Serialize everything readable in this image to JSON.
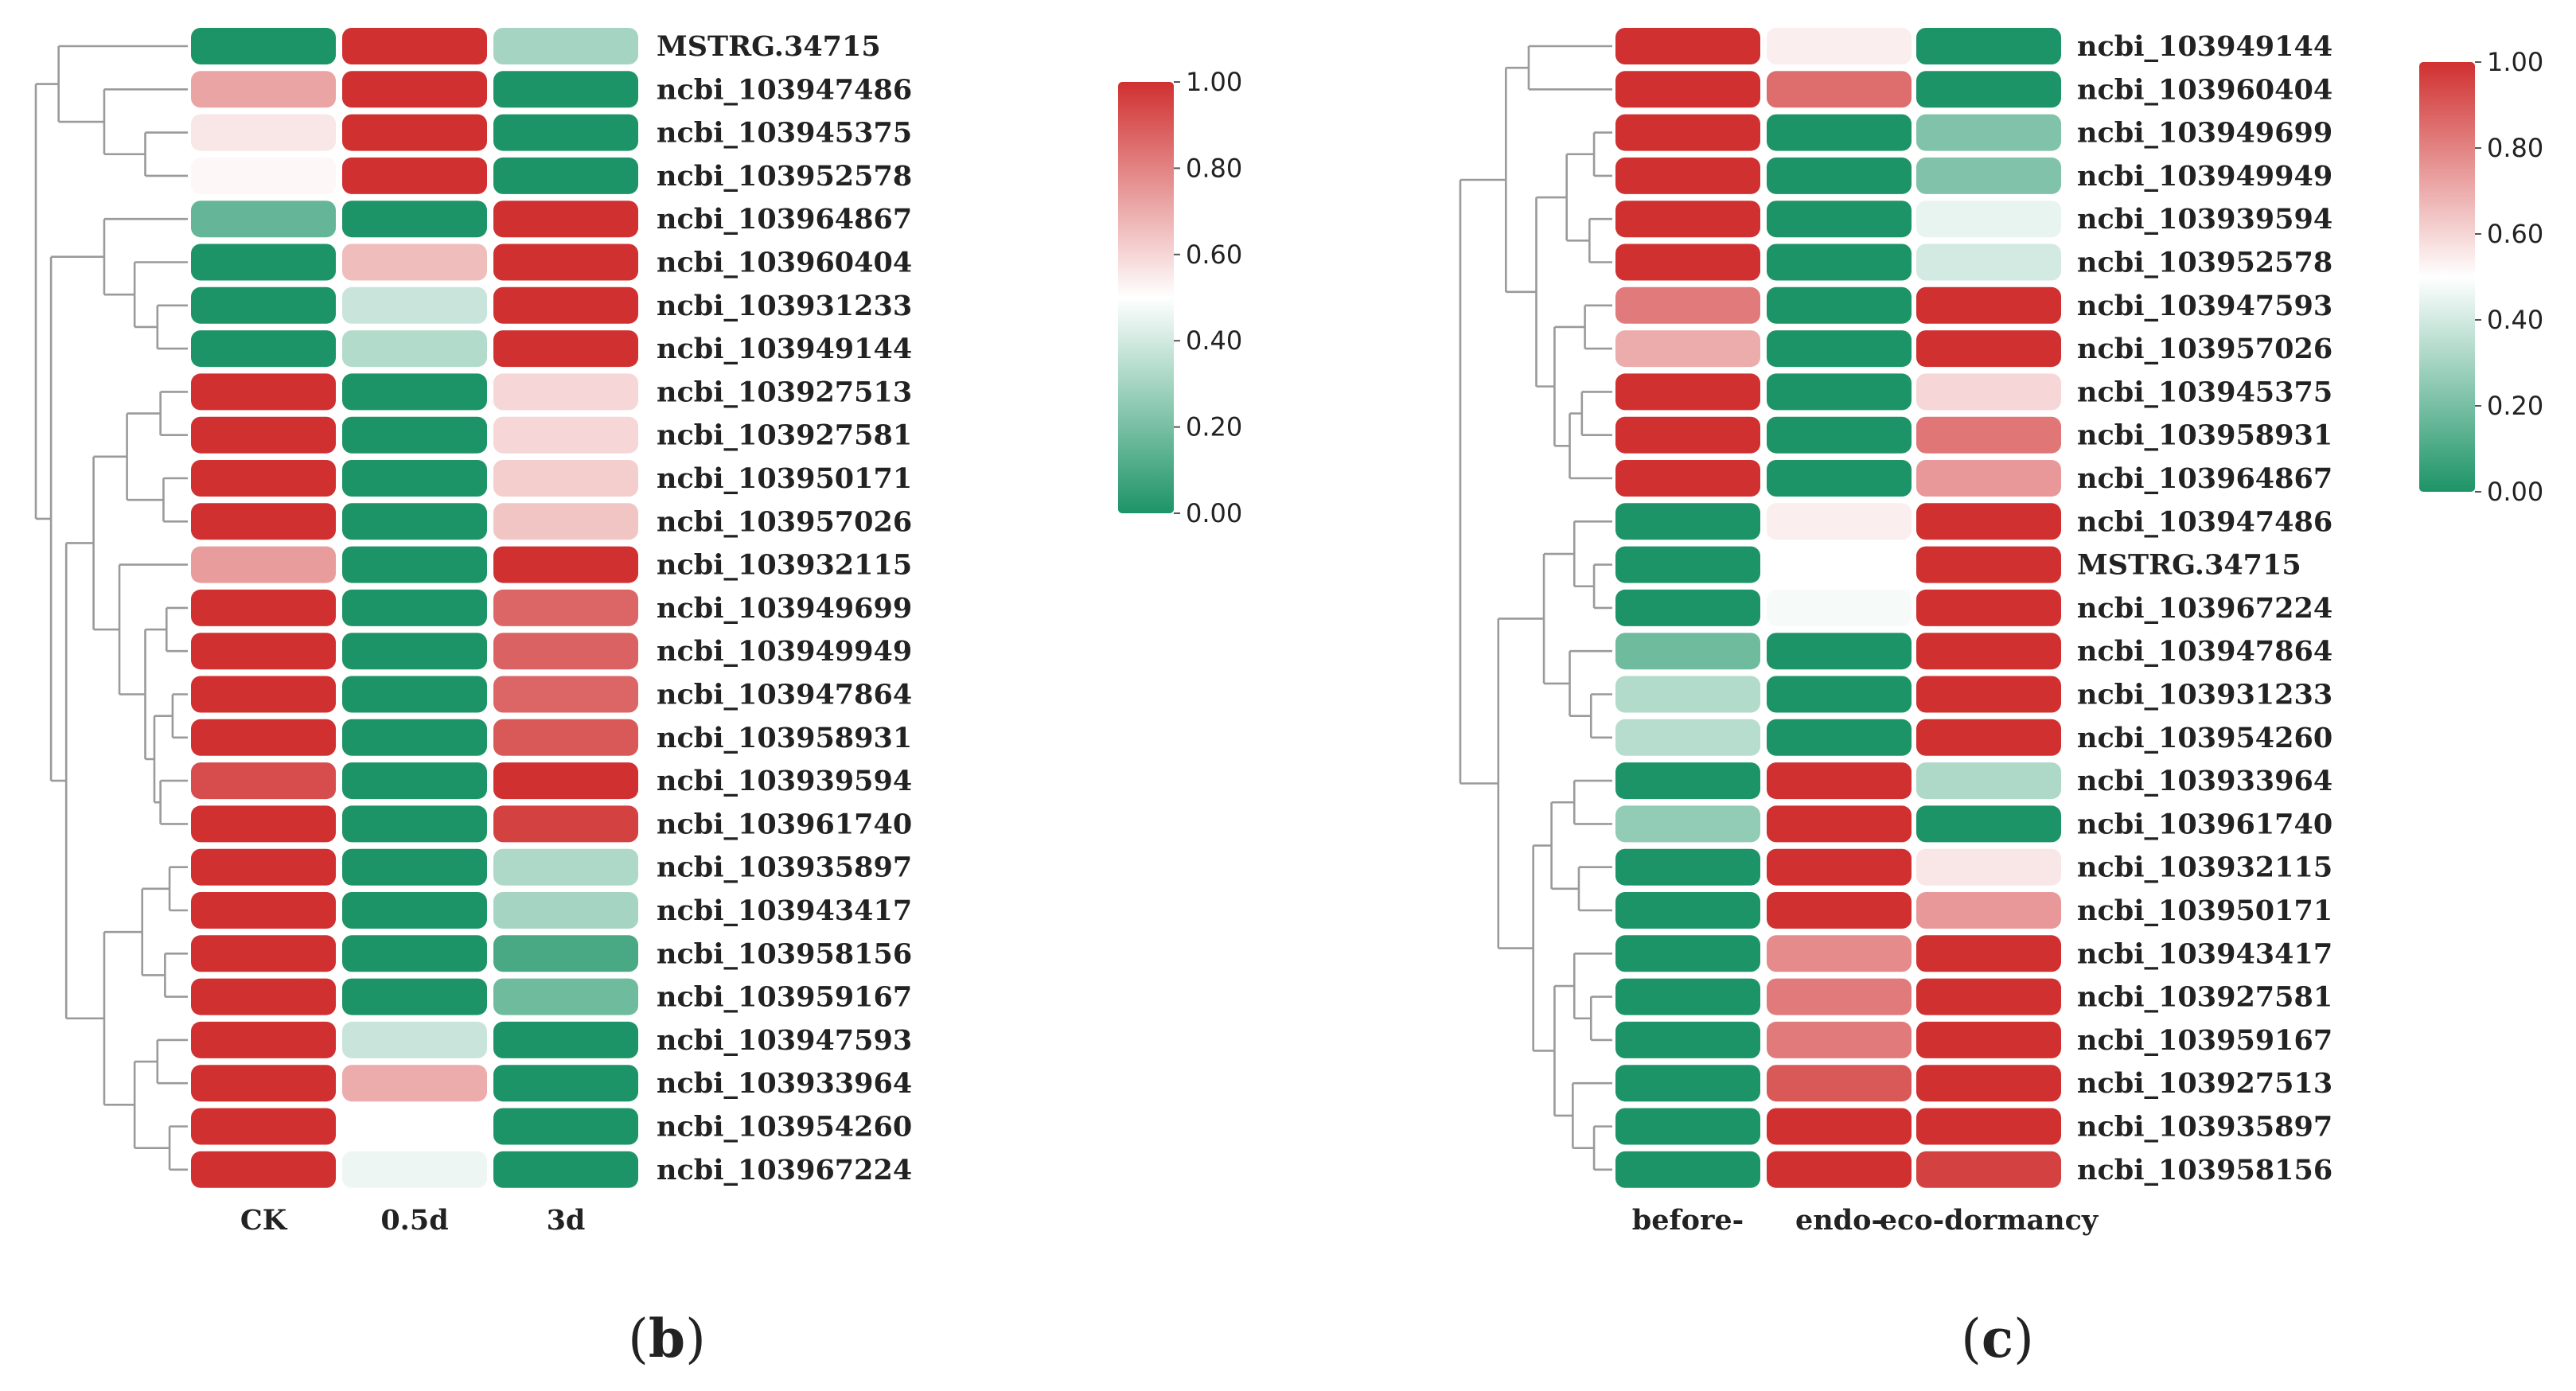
{
  "colors": {
    "low": "#1d9467",
    "mid": "#ffffff",
    "high": "#d03030"
  },
  "panels": [
    {
      "id": "b",
      "label": "(b)",
      "label_text": "b",
      "chart_data": {
        "type": "heatmap",
        "value_range": [
          0,
          1
        ],
        "scale_ticks": [
          "1.00",
          "0.80",
          "0.60",
          "0.40",
          "0.20",
          "0.00"
        ],
        "columns": [
          "CK",
          "0.5d",
          "3d"
        ],
        "rows": [
          "MSTRG.34715",
          "ncbi_103947486",
          "ncbi_103945375",
          "ncbi_103952578",
          "ncbi_103964867",
          "ncbi_103960404",
          "ncbi_103931233",
          "ncbi_103949144",
          "ncbi_103927513",
          "ncbi_103927581",
          "ncbi_103950171",
          "ncbi_103957026",
          "ncbi_103932115",
          "ncbi_103949699",
          "ncbi_103949949",
          "ncbi_103947864",
          "ncbi_103958931",
          "ncbi_103939594",
          "ncbi_103961740",
          "ncbi_103935897",
          "ncbi_103943417",
          "ncbi_103958156",
          "ncbi_103959167",
          "ncbi_103947593",
          "ncbi_103933964",
          "ncbi_103954260",
          "ncbi_103967224"
        ],
        "values": [
          [
            0.0,
            1.0,
            0.3
          ],
          [
            0.72,
            1.0,
            0.0
          ],
          [
            0.56,
            1.0,
            0.0
          ],
          [
            0.52,
            1.0,
            0.0
          ],
          [
            0.16,
            0.0,
            1.0
          ],
          [
            0.0,
            0.66,
            1.0
          ],
          [
            0.0,
            0.38,
            1.0
          ],
          [
            0.0,
            0.33,
            1.0
          ],
          [
            1.0,
            0.0,
            0.6
          ],
          [
            1.0,
            0.0,
            0.6
          ],
          [
            1.0,
            0.0,
            0.62
          ],
          [
            1.0,
            0.0,
            0.64
          ],
          [
            0.74,
            0.0,
            1.0
          ],
          [
            1.0,
            0.0,
            0.87
          ],
          [
            1.0,
            0.0,
            0.88
          ],
          [
            1.0,
            0.0,
            0.87
          ],
          [
            1.0,
            0.0,
            0.9
          ],
          [
            0.93,
            0.0,
            1.0
          ],
          [
            1.0,
            0.0,
            0.96
          ],
          [
            1.0,
            0.0,
            0.32
          ],
          [
            1.0,
            0.0,
            0.3
          ],
          [
            1.0,
            0.0,
            0.1
          ],
          [
            1.0,
            0.0,
            0.18
          ],
          [
            1.0,
            0.38,
            0.0
          ],
          [
            1.0,
            0.7,
            0.0
          ],
          [
            1.0,
            0.5,
            0.0
          ],
          [
            1.0,
            0.46,
            0.0
          ]
        ]
      }
    },
    {
      "id": "c",
      "label": "(c)",
      "label_text": "c",
      "chart_data": {
        "type": "heatmap",
        "value_range": [
          0,
          1
        ],
        "scale_ticks": [
          "1.00",
          "0.80",
          "0.60",
          "0.40",
          "0.20",
          "0.00"
        ],
        "columns": [
          "before-",
          "endo-",
          "eco-dormancy"
        ],
        "rows": [
          "ncbi_103949144",
          "ncbi_103960404",
          "ncbi_103949699",
          "ncbi_103949949",
          "ncbi_103939594",
          "ncbi_103952578",
          "ncbi_103947593",
          "ncbi_103957026",
          "ncbi_103945375",
          "ncbi_103958931",
          "ncbi_103964867",
          "ncbi_103947486",
          "MSTRG.34715",
          "ncbi_103967224",
          "ncbi_103947864",
          "ncbi_103931233",
          "ncbi_103954260",
          "ncbi_103933964",
          "ncbi_103961740",
          "ncbi_103932115",
          "ncbi_103950171",
          "ncbi_103943417",
          "ncbi_103927581",
          "ncbi_103959167",
          "ncbi_103927513",
          "ncbi_103935897",
          "ncbi_103958156"
        ],
        "values": [
          [
            1.0,
            0.54,
            0.0
          ],
          [
            1.0,
            0.85,
            0.0
          ],
          [
            1.0,
            0.0,
            0.22
          ],
          [
            1.0,
            0.0,
            0.22
          ],
          [
            1.0,
            0.0,
            0.45
          ],
          [
            1.0,
            0.0,
            0.4
          ],
          [
            0.82,
            0.0,
            1.0
          ],
          [
            0.7,
            0.0,
            1.0
          ],
          [
            1.0,
            0.0,
            0.6
          ],
          [
            1.0,
            0.0,
            0.83
          ],
          [
            1.0,
            0.0,
            0.75
          ],
          [
            0.0,
            0.54,
            1.0
          ],
          [
            0.0,
            0.5,
            1.0
          ],
          [
            0.0,
            0.48,
            1.0
          ],
          [
            0.18,
            0.0,
            1.0
          ],
          [
            0.33,
            0.0,
            1.0
          ],
          [
            0.34,
            0.0,
            1.0
          ],
          [
            0.0,
            1.0,
            0.32
          ],
          [
            0.26,
            1.0,
            0.0
          ],
          [
            0.0,
            1.0,
            0.56
          ],
          [
            0.0,
            1.0,
            0.75
          ],
          [
            0.0,
            0.78,
            1.0
          ],
          [
            0.0,
            0.82,
            1.0
          ],
          [
            0.0,
            0.82,
            1.0
          ],
          [
            0.0,
            0.9,
            1.0
          ],
          [
            0.0,
            1.0,
            1.0
          ],
          [
            0.0,
            1.0,
            0.96
          ]
        ]
      }
    }
  ]
}
